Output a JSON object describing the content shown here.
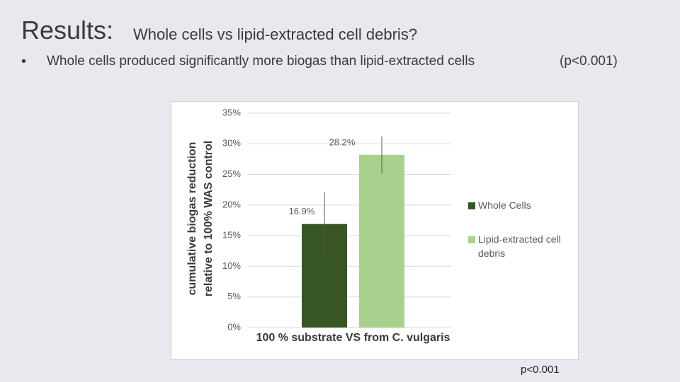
{
  "slide": {
    "title": "Results:",
    "subtitle": "Whole cells vs lipid-extracted cell debris?",
    "bullet": "Whole cells produced significantly more biogas than lipid-extracted cells",
    "bullet_note": "(p<0.001)",
    "footnote": "p<0.001"
  },
  "chart_data": {
    "type": "bar",
    "y_label": [
      "cumulative biogas reduction",
      "relative to 100% WAS control"
    ],
    "categories": [
      "100 % substrate VS from C. vulgaris"
    ],
    "series": [
      {
        "name": "Whole Cells",
        "color": "#375623",
        "values": [
          16.9
        ],
        "value_labels": [
          "16.9%"
        ],
        "error": [
          5.2
        ]
      },
      {
        "name": "Lipid-extracted cell debris",
        "color": "#a9d18e",
        "values": [
          28.2
        ],
        "value_labels": [
          "28.2%"
        ],
        "error": [
          3
        ]
      }
    ],
    "ylim": [
      0,
      35
    ],
    "yticks": [
      {
        "value": 0,
        "label": "0%"
      },
      {
        "value": 5,
        "label": "5%"
      },
      {
        "value": 10,
        "label": "10%"
      },
      {
        "value": 15,
        "label": "15%"
      },
      {
        "value": 20,
        "label": "20%"
      },
      {
        "value": 25,
        "label": "25%"
      },
      {
        "value": 30,
        "label": "30%"
      },
      {
        "value": 35,
        "label": "35%"
      }
    ],
    "grid": true,
    "legend": "right"
  }
}
